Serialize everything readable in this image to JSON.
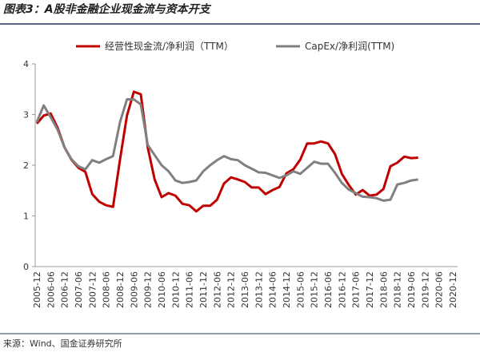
{
  "chart_data": {
    "type": "line",
    "title": "图表3：A股非金融企业现金流与资本开支",
    "source": "来源：Wind、国金证券研究所",
    "categories": [
      "2005-12",
      null,
      "2006-06",
      null,
      "2006-12",
      null,
      "2007-06",
      null,
      "2007-12",
      null,
      "2008-06",
      null,
      "2008-12",
      null,
      "2009-06",
      null,
      "2009-12",
      null,
      "2010-06",
      null,
      "2010-12",
      null,
      "2011-06",
      null,
      "2011-12",
      null,
      "2012-06",
      null,
      "2012-12",
      null,
      "2013-06",
      null,
      "2013-12",
      null,
      "2014-06",
      null,
      "2014-12",
      null,
      "2015-06",
      null,
      "2015-12",
      null,
      "2016-06",
      null,
      "2016-12",
      null,
      "2017-06",
      null,
      "2017-12",
      null,
      "2018-06",
      null,
      "2018-12",
      null,
      "2019-06",
      null,
      "2019-12",
      null,
      "2020-06",
      null,
      "2020-12"
    ],
    "series": [
      {
        "name": "经营性现金流/净利润（TTM）",
        "color": "#c00000",
        "values": [
          2.82,
          2.98,
          3.02,
          2.74,
          2.35,
          2.11,
          1.95,
          1.87,
          1.43,
          1.28,
          1.21,
          1.18,
          2.11,
          2.98,
          3.45,
          3.4,
          2.35,
          1.72,
          1.37,
          1.45,
          1.4,
          1.24,
          1.21,
          1.09,
          1.2,
          1.2,
          1.32,
          1.64,
          1.76,
          1.72,
          1.67,
          1.56,
          1.56,
          1.43,
          1.51,
          1.57,
          1.84,
          1.92,
          2.11,
          2.43,
          2.43,
          2.47,
          2.43,
          2.22,
          1.83,
          1.61,
          1.42,
          1.51,
          1.4,
          1.42,
          1.53,
          1.98,
          2.05,
          2.17,
          2.14,
          2.15,
          null,
          null,
          null,
          null,
          null
        ]
      },
      {
        "name": "CapEx/净利润(TTM)",
        "color": "#808080",
        "values": [
          2.85,
          3.18,
          2.95,
          2.7,
          2.35,
          2.12,
          1.98,
          1.92,
          2.1,
          2.05,
          2.12,
          2.18,
          2.85,
          3.3,
          3.3,
          3.2,
          2.4,
          2.2,
          2.0,
          1.88,
          1.7,
          1.65,
          1.67,
          1.7,
          1.88,
          2.0,
          2.1,
          2.18,
          2.12,
          2.1,
          2.0,
          1.93,
          1.86,
          1.85,
          1.8,
          1.75,
          1.8,
          1.88,
          1.83,
          1.95,
          2.07,
          2.03,
          2.03,
          1.85,
          1.65,
          1.52,
          1.45,
          1.38,
          1.37,
          1.35,
          1.3,
          1.32,
          1.62,
          1.65,
          1.7,
          1.72,
          null,
          null,
          null,
          null,
          null
        ]
      }
    ],
    "ylim": [
      0,
      4
    ],
    "yticks": [
      0,
      1,
      2,
      3,
      4
    ],
    "grid": false,
    "legend": "top"
  }
}
